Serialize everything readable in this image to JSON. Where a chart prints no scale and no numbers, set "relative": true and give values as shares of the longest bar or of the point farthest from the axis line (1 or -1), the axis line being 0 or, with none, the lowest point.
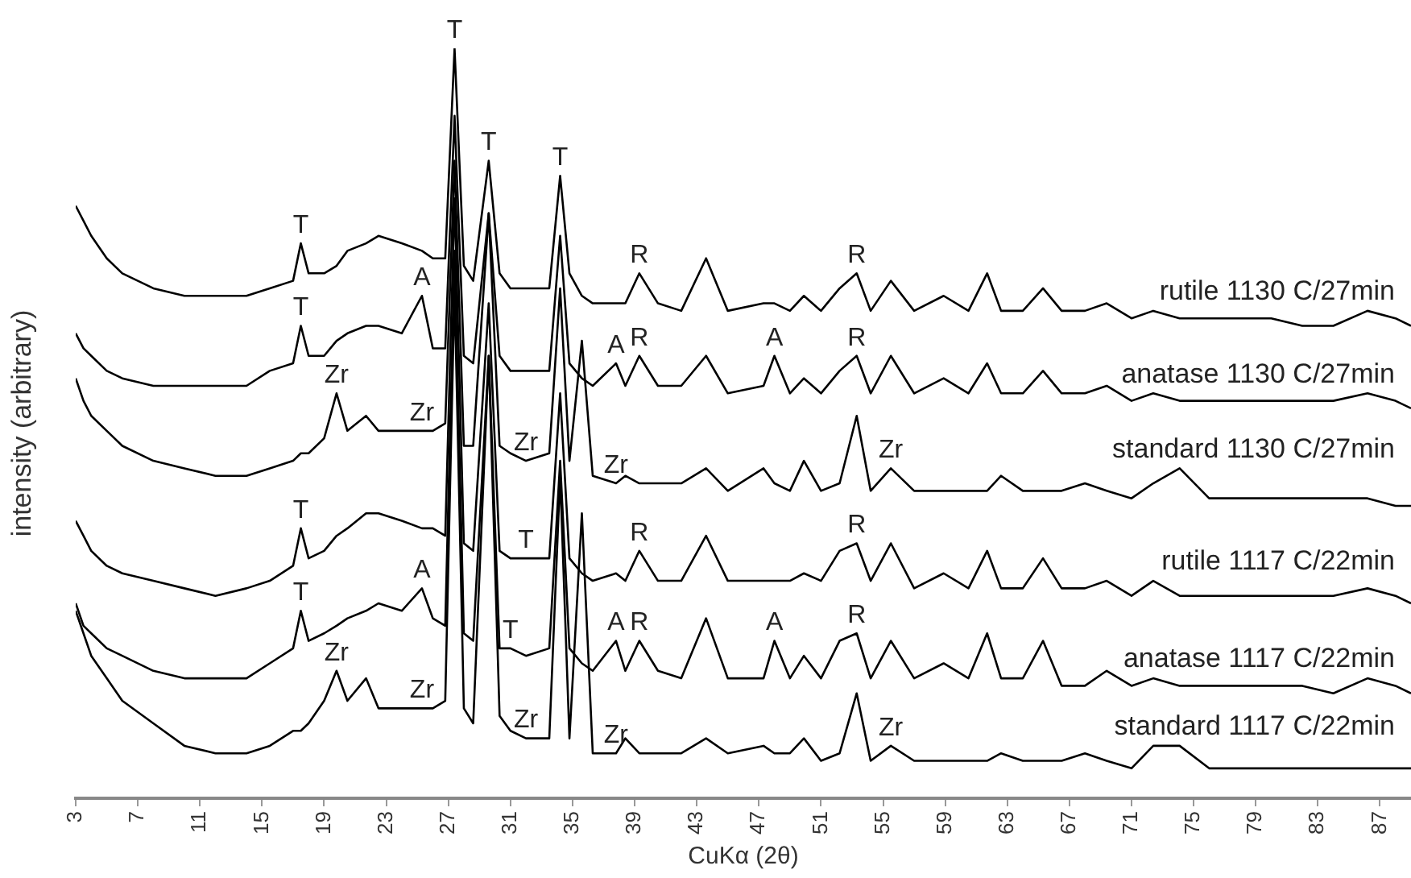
{
  "chart_data": {
    "type": "line",
    "relative": true,
    "xlabel": "CuKα (2θ)",
    "ylabel": "intensity (arbitrary)",
    "xlim": [
      3,
      89
    ],
    "xticks": [
      3,
      7,
      11,
      15,
      19,
      23,
      27,
      31,
      35,
      39,
      43,
      47,
      51,
      55,
      59,
      63,
      67,
      71,
      75,
      79,
      83,
      87
    ],
    "grid": false,
    "legend": false,
    "marker": "none",
    "line_style": "solid",
    "x": [
      3,
      3.5,
      4,
      5,
      6,
      8,
      10,
      12,
      14,
      15.5,
      17,
      17.5,
      18,
      19,
      19.8,
      20.5,
      21.7,
      22.5,
      24,
      25.3,
      26,
      26.8,
      27.4,
      28.0,
      28.6,
      29.6,
      30.3,
      31,
      32,
      33.5,
      34.2,
      34.8,
      35.6,
      36.3,
      37.8,
      38.4,
      39.3,
      40.5,
      42,
      43.6,
      45,
      47.3,
      48.0,
      49,
      49.9,
      51,
      52.2,
      53.3,
      54.2,
      55.5,
      57,
      58.9,
      60.5,
      61.7,
      62.6,
      64,
      65.3,
      66.5,
      68,
      69.4,
      71,
      72.4,
      74.1,
      76,
      78,
      80,
      82,
      84,
      86.2,
      88,
      89
    ],
    "series": [
      {
        "name": "rutile 1130 C/27min",
        "color": "#000000",
        "values": [
          0.79,
          0.77,
          0.75,
          0.72,
          0.7,
          0.68,
          0.67,
          0.67,
          0.67,
          0.68,
          0.69,
          0.74,
          0.7,
          0.7,
          0.71,
          0.73,
          0.74,
          0.75,
          0.74,
          0.73,
          0.72,
          0.72,
          1,
          0.71,
          0.69,
          0.85,
          0.7,
          0.68,
          0.68,
          0.68,
          0.83,
          0.7,
          0.67,
          0.66,
          0.66,
          0.66,
          0.7,
          0.66,
          0.65,
          0.72,
          0.65,
          0.66,
          0.66,
          0.65,
          0.67,
          0.65,
          0.68,
          0.7,
          0.65,
          0.69,
          0.65,
          0.67,
          0.65,
          0.7,
          0.65,
          0.65,
          0.68,
          0.65,
          0.65,
          0.66,
          0.64,
          0.65,
          0.64,
          0.64,
          0.64,
          0.64,
          0.63,
          0.63,
          0.65,
          0.64,
          0.63
        ]
      },
      {
        "name": "anatase 1130 C/27min",
        "color": "#000000",
        "values": [
          0.62,
          0.6,
          0.59,
          0.57,
          0.56,
          0.55,
          0.55,
          0.55,
          0.55,
          0.57,
          0.58,
          0.63,
          0.59,
          0.59,
          0.61,
          0.62,
          0.63,
          0.63,
          0.62,
          0.67,
          0.6,
          0.6,
          0.91,
          0.59,
          0.58,
          0.78,
          0.59,
          0.57,
          0.57,
          0.57,
          0.75,
          0.58,
          0.56,
          0.55,
          0.58,
          0.55,
          0.59,
          0.55,
          0.55,
          0.59,
          0.54,
          0.55,
          0.59,
          0.54,
          0.56,
          0.54,
          0.57,
          0.59,
          0.54,
          0.59,
          0.54,
          0.56,
          0.54,
          0.58,
          0.54,
          0.54,
          0.57,
          0.54,
          0.54,
          0.55,
          0.53,
          0.54,
          0.53,
          0.53,
          0.53,
          0.53,
          0.53,
          0.53,
          0.54,
          0.53,
          0.52
        ]
      },
      {
        "name": "standard 1130 C/27min",
        "color": "#000000",
        "values": [
          0.56,
          0.53,
          0.51,
          0.49,
          0.47,
          0.45,
          0.44,
          0.43,
          0.43,
          0.44,
          0.45,
          0.46,
          0.46,
          0.48,
          0.54,
          0.49,
          0.51,
          0.49,
          0.49,
          0.49,
          0.49,
          0.5,
          0.85,
          0.47,
          0.47,
          0.78,
          0.47,
          0.46,
          0.45,
          0.46,
          0.68,
          0.45,
          0.61,
          0.43,
          0.42,
          0.43,
          0.42,
          0.42,
          0.42,
          0.44,
          0.41,
          0.44,
          0.42,
          0.41,
          0.45,
          0.41,
          0.42,
          0.51,
          0.41,
          0.44,
          0.41,
          0.41,
          0.41,
          0.41,
          0.43,
          0.41,
          0.41,
          0.41,
          0.42,
          0.41,
          0.4,
          0.42,
          0.44,
          0.4,
          0.4,
          0.4,
          0.4,
          0.4,
          0.4,
          0.39,
          0.39
        ]
      },
      {
        "name": "rutile 1117 C/22min",
        "color": "#000000",
        "values": [
          0.37,
          0.35,
          0.33,
          0.31,
          0.3,
          0.29,
          0.28,
          0.27,
          0.28,
          0.29,
          0.31,
          0.36,
          0.32,
          0.33,
          0.35,
          0.36,
          0.38,
          0.38,
          0.37,
          0.36,
          0.36,
          0.35,
          0.8,
          0.34,
          0.33,
          0.66,
          0.33,
          0.32,
          0.32,
          0.32,
          0.54,
          0.32,
          0.3,
          0.29,
          0.3,
          0.29,
          0.33,
          0.29,
          0.29,
          0.35,
          0.29,
          0.29,
          0.29,
          0.29,
          0.3,
          0.29,
          0.33,
          0.34,
          0.29,
          0.34,
          0.28,
          0.3,
          0.28,
          0.33,
          0.28,
          0.28,
          0.32,
          0.28,
          0.28,
          0.29,
          0.27,
          0.29,
          0.27,
          0.27,
          0.27,
          0.27,
          0.27,
          0.27,
          0.28,
          0.27,
          0.26
        ]
      },
      {
        "name": "anatase 1117 C/22min",
        "color": "#000000",
        "values": [
          0.26,
          0.23,
          0.22,
          0.2,
          0.19,
          0.17,
          0.16,
          0.16,
          0.16,
          0.18,
          0.2,
          0.25,
          0.21,
          0.22,
          0.23,
          0.24,
          0.25,
          0.26,
          0.25,
          0.28,
          0.24,
          0.23,
          0.73,
          0.22,
          0.21,
          0.59,
          0.2,
          0.2,
          0.19,
          0.2,
          0.45,
          0.2,
          0.18,
          0.17,
          0.21,
          0.17,
          0.21,
          0.17,
          0.16,
          0.24,
          0.16,
          0.16,
          0.21,
          0.16,
          0.19,
          0.16,
          0.21,
          0.22,
          0.16,
          0.21,
          0.16,
          0.18,
          0.16,
          0.22,
          0.16,
          0.16,
          0.21,
          0.15,
          0.15,
          0.17,
          0.15,
          0.16,
          0.15,
          0.15,
          0.15,
          0.15,
          0.15,
          0.14,
          0.16,
          0.15,
          0.14
        ]
      },
      {
        "name": "standard 1117 C/22min",
        "color": "#000000",
        "values": [
          0.25,
          0.22,
          0.19,
          0.16,
          0.13,
          0.1,
          0.07,
          0.06,
          0.06,
          0.07,
          0.09,
          0.09,
          0.1,
          0.13,
          0.17,
          0.13,
          0.16,
          0.12,
          0.12,
          0.12,
          0.12,
          0.13,
          0.68,
          0.12,
          0.1,
          0.59,
          0.11,
          0.09,
          0.08,
          0.08,
          0.43,
          0.08,
          0.38,
          0.06,
          0.06,
          0.08,
          0.06,
          0.06,
          0.06,
          0.08,
          0.06,
          0.07,
          0.06,
          0.06,
          0.08,
          0.05,
          0.06,
          0.14,
          0.05,
          0.07,
          0.05,
          0.05,
          0.05,
          0.05,
          0.06,
          0.05,
          0.05,
          0.05,
          0.06,
          0.05,
          0.04,
          0.07,
          0.07,
          0.04,
          0.04,
          0.04,
          0.04,
          0.04,
          0.04,
          0.04,
          0.04
        ]
      }
    ],
    "annotations": [
      {
        "text": "T",
        "x": 17.5,
        "y": 0.74
      },
      {
        "text": "T",
        "x": 27.4,
        "y": 1
      },
      {
        "text": "T",
        "x": 29.6,
        "y": 0.85
      },
      {
        "text": "T",
        "x": 34.2,
        "y": 0.83
      },
      {
        "text": "R",
        "x": 39.3,
        "y": 0.7
      },
      {
        "text": "R",
        "x": 53.3,
        "y": 0.7
      },
      {
        "text": "T",
        "x": 17.5,
        "y": 0.63
      },
      {
        "text": "A",
        "x": 25.3,
        "y": 0.67
      },
      {
        "text": "A",
        "x": 37.8,
        "y": 0.58
      },
      {
        "text": "R",
        "x": 39.3,
        "y": 0.59
      },
      {
        "text": "A",
        "x": 48.0,
        "y": 0.59
      },
      {
        "text": "R",
        "x": 53.3,
        "y": 0.59
      },
      {
        "text": "Zr",
        "x": 19.8,
        "y": 0.54
      },
      {
        "text": "Zr",
        "x": 25.3,
        "y": 0.49
      },
      {
        "text": "Zr",
        "x": 32,
        "y": 0.45
      },
      {
        "text": "Zr",
        "x": 37.8,
        "y": 0.42
      },
      {
        "text": "Zr",
        "x": 55.5,
        "y": 0.44
      },
      {
        "text": "T",
        "x": 17.5,
        "y": 0.36
      },
      {
        "text": "T",
        "x": 32,
        "y": 0.32
      },
      {
        "text": "R",
        "x": 39.3,
        "y": 0.33
      },
      {
        "text": "R",
        "x": 53.3,
        "y": 0.34
      },
      {
        "text": "T",
        "x": 17.5,
        "y": 0.25
      },
      {
        "text": "A",
        "x": 25.3,
        "y": 0.28
      },
      {
        "text": "T",
        "x": 31,
        "y": 0.2
      },
      {
        "text": "A",
        "x": 37.8,
        "y": 0.21
      },
      {
        "text": "R",
        "x": 39.3,
        "y": 0.21
      },
      {
        "text": "A",
        "x": 48.0,
        "y": 0.21
      },
      {
        "text": "R",
        "x": 53.3,
        "y": 0.22
      },
      {
        "text": "Zr",
        "x": 19.8,
        "y": 0.17
      },
      {
        "text": "Zr",
        "x": 25.3,
        "y": 0.12
      },
      {
        "text": "Zr",
        "x": 32,
        "y": 0.08
      },
      {
        "text": "Zr",
        "x": 37.8,
        "y": 0.06
      },
      {
        "text": "Zr",
        "x": 55.5,
        "y": 0.07
      }
    ]
  }
}
